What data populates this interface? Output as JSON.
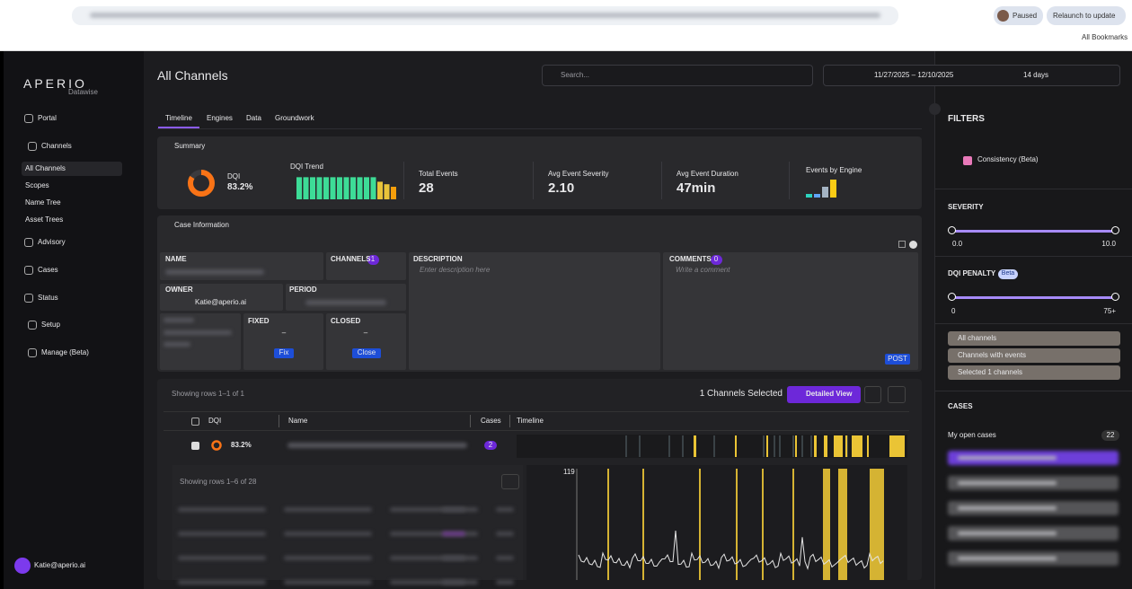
{
  "browser": {
    "status": "Paused",
    "relaunch": "Relaunch to update",
    "bookmarks": "All Bookmarks"
  },
  "sidebar": {
    "logo": "APERIO",
    "logo_sub": "Datawise",
    "nav": [
      "Portal",
      "Channels",
      "All Channels",
      "Scopes",
      "Name Tree",
      "Asset Trees",
      "Advisory",
      "Cases",
      "Status",
      "Setup",
      "Manage (Beta)"
    ],
    "user": "Katie@aperio.ai"
  },
  "header": {
    "title": "All Channels",
    "search_placeholder": "Search...",
    "date_range": "11/27/2025 – 12/10/2025",
    "range": "14 days"
  },
  "tabs": [
    "Timeline",
    "Engines",
    "Data",
    "Groundwork"
  ],
  "summary": {
    "title": "Summary",
    "dqi_label": "DQI",
    "dqi": "83.2%",
    "trend_label": "DQI Trend",
    "dqi_trend": [
      88,
      88,
      88,
      88,
      88,
      88,
      88,
      88,
      88,
      88,
      88,
      88,
      70,
      60,
      50
    ],
    "total_events_label": "Total Events",
    "total_events": "28",
    "avg_severity_label": "Avg Event Severity",
    "avg_severity": "2.10",
    "avg_duration_label": "Avg Event Duration",
    "avg_duration": "47min",
    "events_by_engine_label": "Events by Engine",
    "events_by_engine": [
      1,
      1,
      3,
      5
    ]
  },
  "case": {
    "title": "Case Information",
    "name_label": "NAME",
    "channels_label": "CHANNELS",
    "channels": "1",
    "description_label": "DESCRIPTION",
    "description_placeholder": "Enter description here",
    "comments_label": "COMMENTS",
    "comments": "0",
    "comment_placeholder": "Write a comment",
    "owner_label": "OWNER",
    "owner": "Katie@aperio.ai",
    "period_label": "PERIOD",
    "fixed_label": "FIXED",
    "fixed": "–",
    "fix_button": "Fix",
    "closed_label": "CLOSED",
    "closed": "–",
    "close_button": "Close",
    "post_button": "POST"
  },
  "table": {
    "rows_info": "Showing rows 1–1 of 1",
    "selected": "1 Channels Selected",
    "detailed_view": "Detailed View",
    "columns": [
      "DQI",
      "Name",
      "Cases",
      "Timeline"
    ],
    "row_dqi": "83.2%",
    "row_cases": "2",
    "sub_rows_info": "Showing rows 1–6 of 28",
    "chart_max": "119"
  },
  "filters": {
    "title": "FILTERS",
    "consistency": "Consistency (Beta)",
    "severity_label": "SEVERITY",
    "severity_min": "0.0",
    "severity_max": "10.0",
    "dqi_penalty_label": "DQI PENALTY",
    "beta": "Beta",
    "penalty_min": "0",
    "penalty_max": "75+",
    "channel_options": [
      "All channels",
      "Channels with events",
      "Selected 1 channels"
    ],
    "cases_label": "CASES",
    "my_open_cases": "My open cases",
    "open_cases_count": "22"
  }
}
